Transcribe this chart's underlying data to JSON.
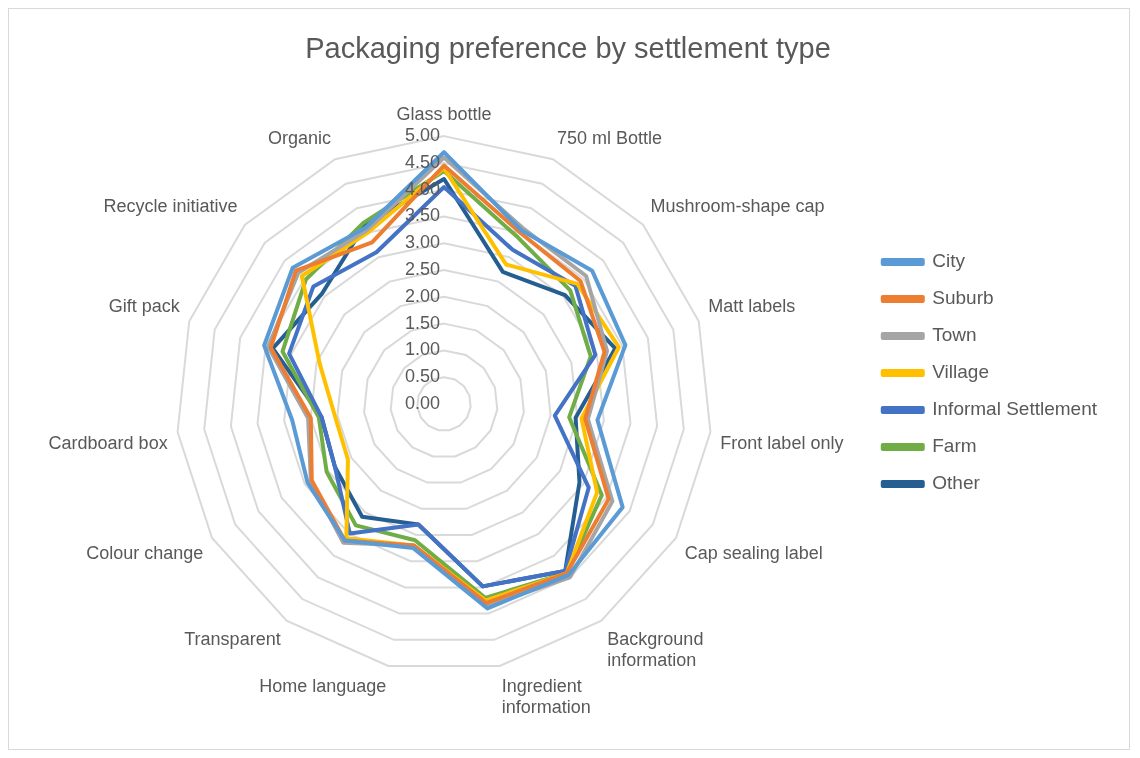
{
  "chart_data": {
    "type": "radar",
    "title": "Packaging preference by settlement type",
    "categories": [
      "Glass bottle",
      "750 ml Bottle",
      "Mushroom-shape cap",
      "Matt labels",
      "Front label only",
      "Cap sealing label",
      "Background information",
      "Ingredient information",
      "Home language",
      "Transparent",
      "Colour change",
      "Cardboard box",
      "Gift pack",
      "Recycle initiative",
      "Organic"
    ],
    "series": [
      {
        "name": "City",
        "color": "#5b9bd5",
        "values": [
          4.7,
          3.55,
          3.72,
          3.56,
          2.88,
          3.85,
          3.95,
          3.9,
          2.75,
          3.15,
          2.94,
          2.85,
          3.53,
          3.8,
          3.6
        ]
      },
      {
        "name": "Suburb",
        "color": "#ed7d31",
        "values": [
          4.45,
          3.5,
          3.43,
          3.15,
          2.65,
          3.55,
          3.9,
          3.8,
          2.7,
          3.15,
          2.85,
          2.5,
          3.4,
          3.72,
          3.3
        ]
      },
      {
        "name": "Town",
        "color": "#a5a5a5",
        "values": [
          4.6,
          3.6,
          3.57,
          3.2,
          2.7,
          3.63,
          4.0,
          3.85,
          2.7,
          3.2,
          2.87,
          2.55,
          3.45,
          3.66,
          3.55
        ]
      },
      {
        "name": "Village",
        "color": "#ffc000",
        "values": [
          4.4,
          2.85,
          3.35,
          3.43,
          2.58,
          3.3,
          3.9,
          3.75,
          2.7,
          3.1,
          2.07,
          2.05,
          2.44,
          3.57,
          3.5
        ]
      },
      {
        "name": "Informal Settlement",
        "color": "#4472c4",
        "values": [
          4.05,
          3.15,
          3.3,
          2.97,
          2.08,
          3.12,
          3.85,
          3.48,
          2.3,
          2.99,
          2.35,
          2.3,
          3.04,
          3.28,
          3.1
        ]
      },
      {
        "name": "Farm",
        "color": "#70ad47",
        "values": [
          4.35,
          3.4,
          3.17,
          2.88,
          2.35,
          3.4,
          3.9,
          3.7,
          2.6,
          2.8,
          2.53,
          2.35,
          3.17,
          3.47,
          3.7
        ]
      },
      {
        "name": "Other",
        "color": "#255e91",
        "values": [
          4.2,
          2.7,
          3.04,
          3.36,
          2.47,
          2.92,
          3.85,
          3.48,
          2.3,
          2.6,
          2.35,
          2.3,
          3.36,
          3.07,
          3.65
        ]
      }
    ],
    "ylim": [
      0,
      5
    ],
    "yticks": [
      {
        "value": 0,
        "label": "0.00"
      },
      {
        "value": 0.5,
        "label": "0.50"
      },
      {
        "value": 1,
        "label": "1.00"
      },
      {
        "value": 1.5,
        "label": "1.50"
      },
      {
        "value": 2,
        "label": "2.00"
      },
      {
        "value": 2.5,
        "label": "2.50"
      },
      {
        "value": 3,
        "label": "3.00"
      },
      {
        "value": 3.5,
        "label": "3.50"
      },
      {
        "value": 4,
        "label": "4.00"
      },
      {
        "value": 4.5,
        "label": "4.50"
      },
      {
        "value": 5,
        "label": "5.00"
      }
    ],
    "grid": true,
    "legend": "right",
    "marker": "none",
    "line_style": "solid"
  }
}
